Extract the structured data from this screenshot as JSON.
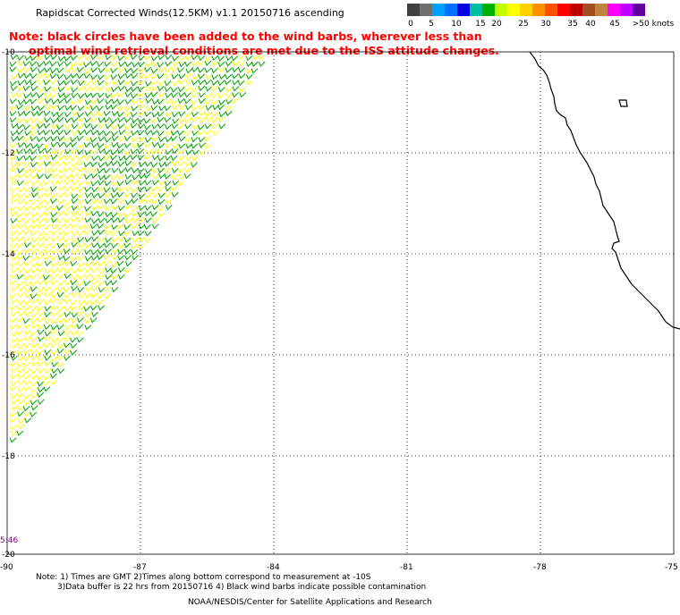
{
  "title": "Rapidscat Corrected Winds(12.5KM) v1.1 20150716 ascending",
  "note_line1": "Note: black circles have been added to the wind barbs, wherever less than",
  "note_line2": "optimal wind retrieval conditions are met due to the ISS attitude changes.",
  "scale": {
    "colors": [
      "#404040",
      "#707070",
      "#00a0ff",
      "#0070ff",
      "#0000e0",
      "#00c0a0",
      "#00b000",
      "#c0ff00",
      "#ffff00",
      "#ffd000",
      "#ff9000",
      "#ff5000",
      "#ff0000",
      "#c00000",
      "#a05020",
      "#c08040",
      "#ff00ff",
      "#c000ff",
      "#6000a0"
    ],
    "labels": [
      "0",
      "5",
      "10",
      "15",
      "20",
      "25",
      "30",
      "35",
      "40",
      "45",
      ">50 knots"
    ]
  },
  "y_axis_labels": [
    "-10",
    "-12",
    "-14",
    "-16",
    "-18",
    "-20"
  ],
  "x_axis_labels": [
    "-90",
    "-87",
    "-84",
    "-81",
    "-78",
    "-75"
  ],
  "timestamp": "5:46",
  "footer": {
    "line1": "Note: 1) Times are GMT 2)Times along bottom correspond to measurement at -10S",
    "line2": "3)Data buffer is 22 hrs from 20150716 4) Black wind barbs indicate possible contamination",
    "line3": "NOAA/NESDIS/Center for Satellite Applications and Research"
  },
  "barb_colors": {
    "light": "#ffff00",
    "strong": "#00a000"
  }
}
